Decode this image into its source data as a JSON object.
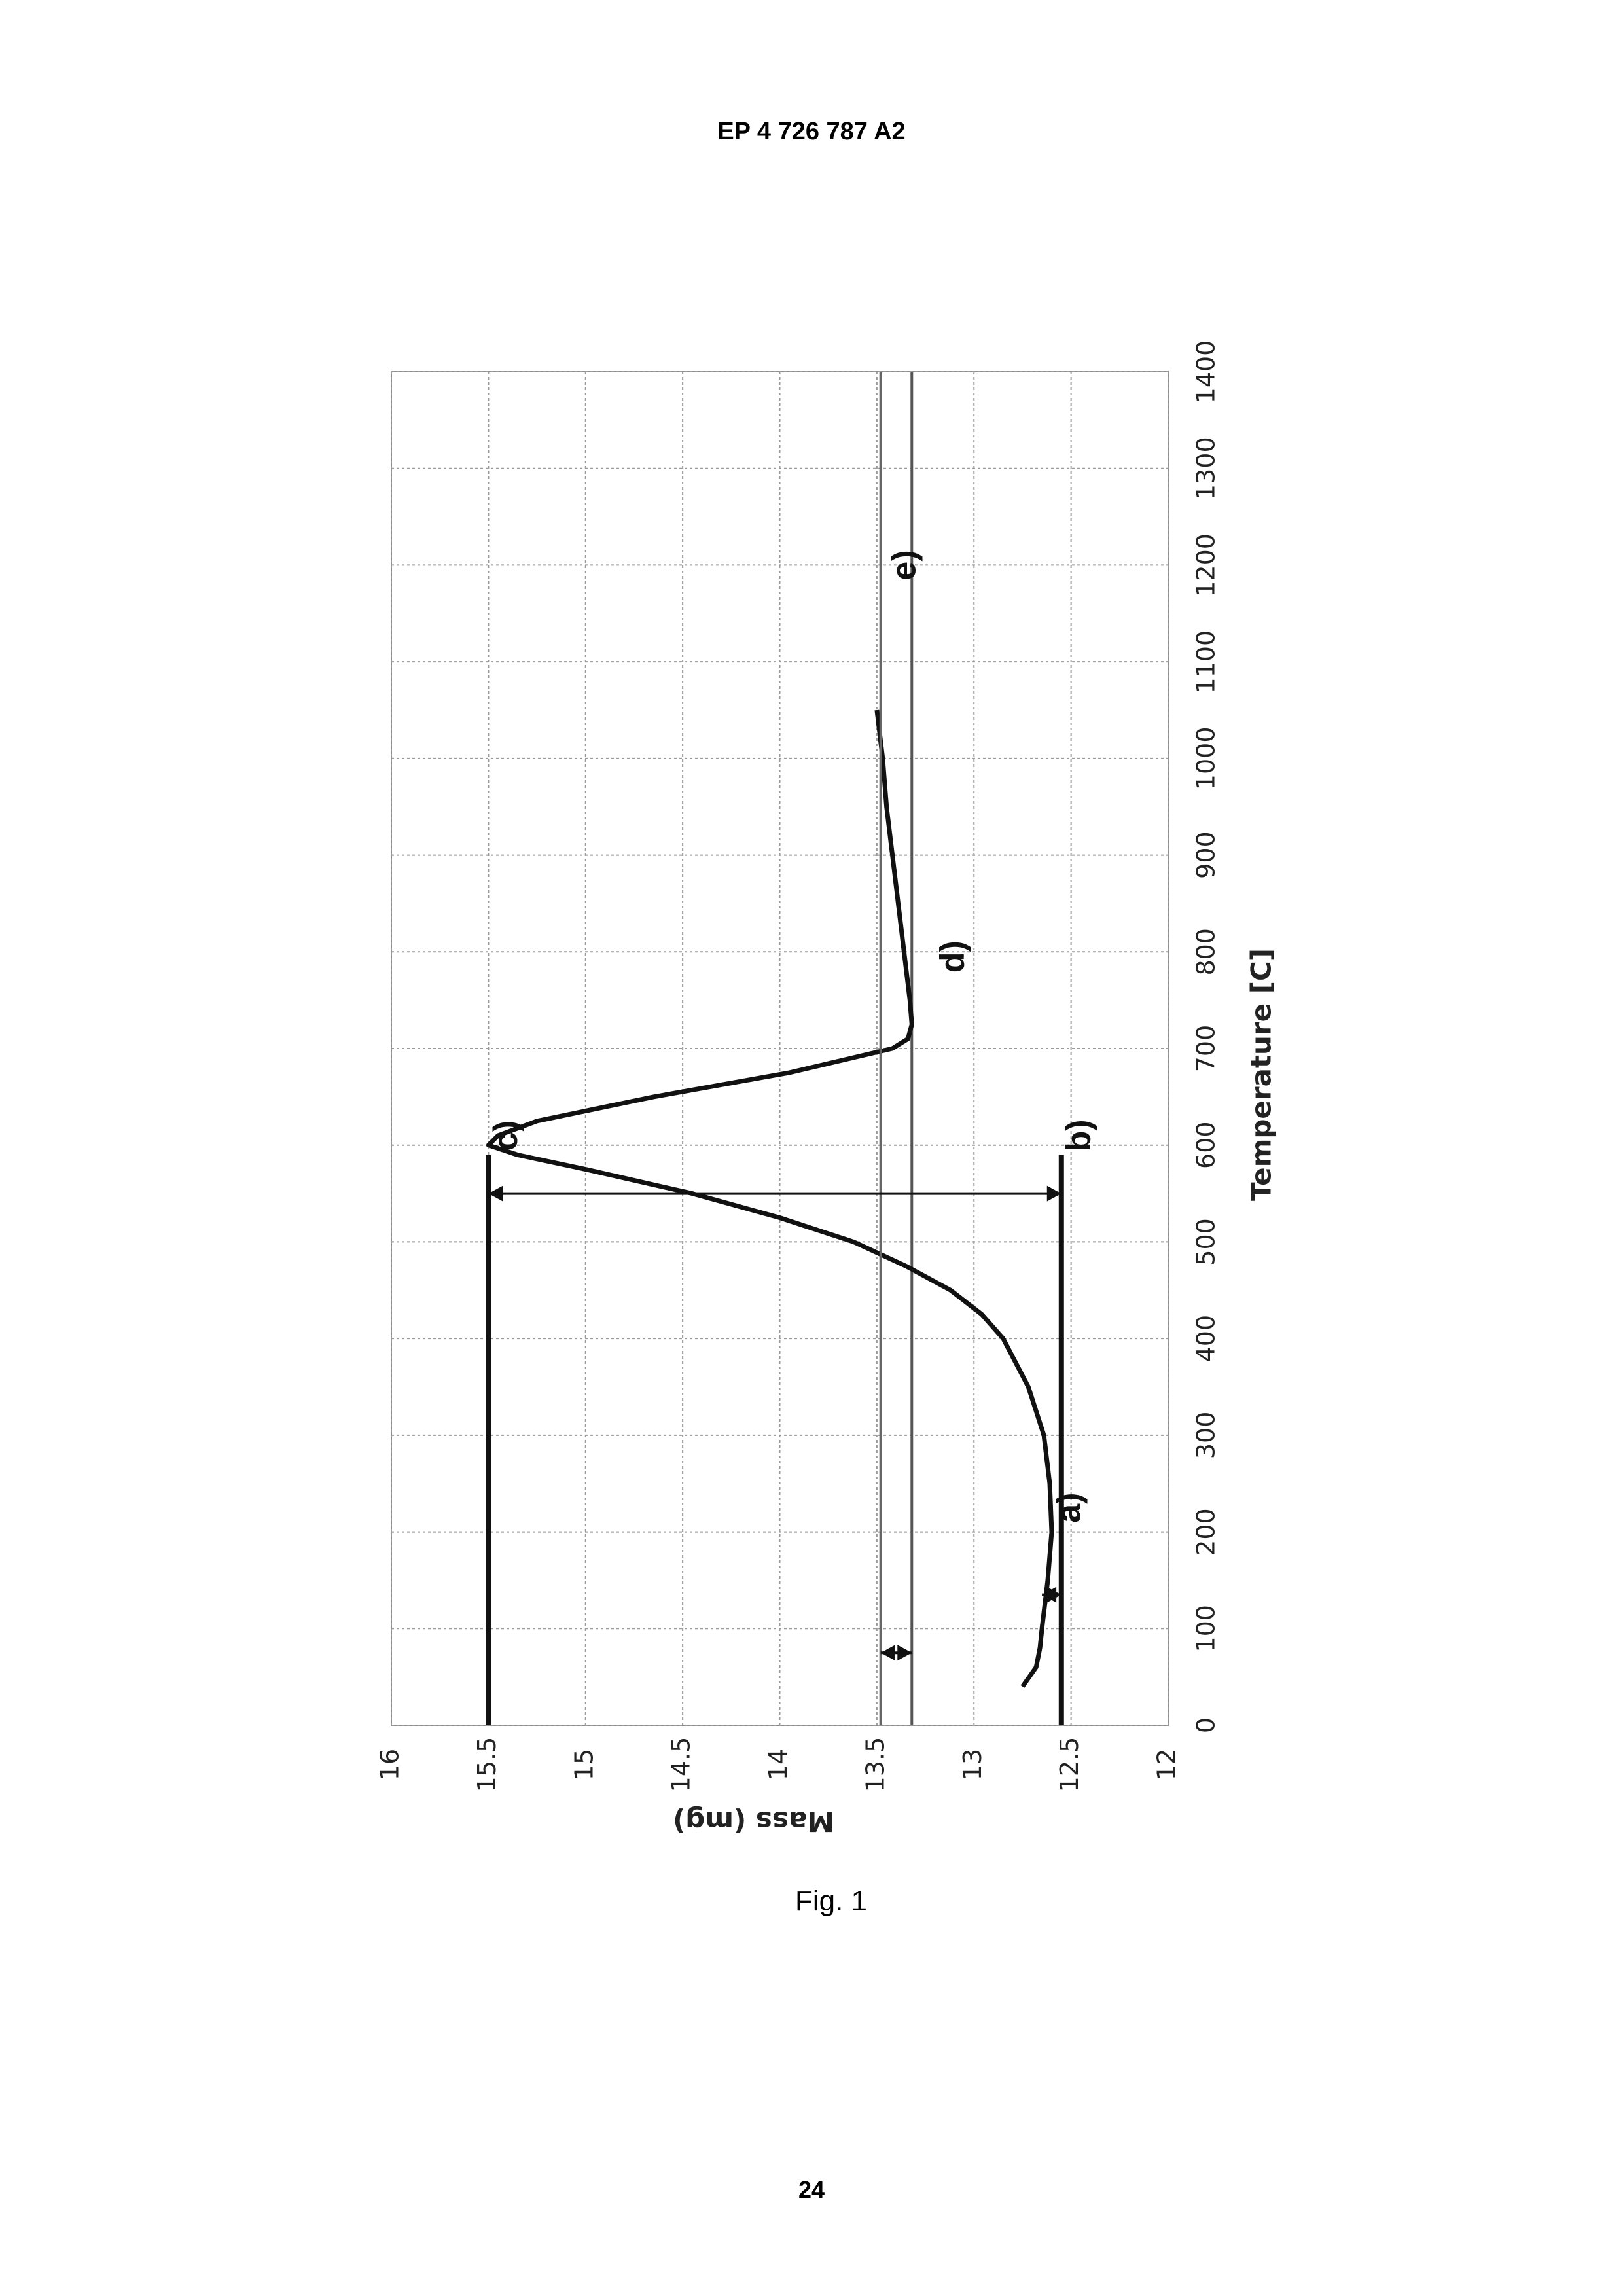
{
  "page": {
    "header": "EP 4 726 787 A2",
    "caption": "Fig. 1",
    "page_number": "24"
  },
  "chart_data": {
    "type": "line",
    "orientation": "rotated-90-counterclockwise",
    "xlabel": "Temperature [C]",
    "ylabel": "Mass (mg)",
    "xlim": [
      0,
      1400
    ],
    "ylim": [
      12,
      16
    ],
    "x_ticks": [
      "0",
      "100",
      "200",
      "300",
      "400",
      "500",
      "600",
      "700",
      "800",
      "900",
      "1000",
      "1100",
      "1200",
      "1300",
      "1400"
    ],
    "y_ticks": [
      "12",
      "12.5",
      "13",
      "13.5",
      "14",
      "14.5",
      "15",
      "15.5",
      "16"
    ],
    "grid": true,
    "series": [
      {
        "x": [
          40,
          60,
          80,
          100,
          150,
          200,
          250,
          300,
          350,
          400,
          425,
          450,
          475,
          500,
          525,
          550,
          575,
          590,
          600,
          610,
          625,
          650,
          675,
          700,
          710,
          725,
          750,
          800,
          850,
          900,
          950,
          1000,
          1050
        ],
        "y": [
          12.75,
          12.68,
          12.66,
          12.65,
          12.62,
          12.6,
          12.61,
          12.64,
          12.72,
          12.85,
          12.96,
          13.12,
          13.35,
          13.62,
          14.0,
          14.45,
          15.0,
          15.35,
          15.5,
          15.45,
          15.25,
          14.65,
          13.95,
          13.42,
          13.34,
          13.32,
          13.33,
          13.36,
          13.39,
          13.42,
          13.45,
          13.47,
          13.5
        ]
      },
      {
        "x": [
          0,
          1400
        ],
        "y": [
          13.48,
          13.48
        ]
      }
    ],
    "reference_lines": [
      {
        "y": 15.5,
        "x": [
          0,
          590
        ],
        "label": "c)"
      },
      {
        "y": 12.55,
        "x": [
          0,
          590
        ],
        "label": "b)"
      },
      {
        "y": 13.32,
        "x": [
          0,
          1400
        ]
      },
      {
        "y": 13.48,
        "x": [
          0,
          1400
        ]
      }
    ],
    "annotations": [
      {
        "text": "a)",
        "x": 225,
        "y": 12.6
      },
      {
        "text": "b)",
        "x": 610,
        "y": 12.55
      },
      {
        "text": "c)",
        "x": 610,
        "y": 15.5
      },
      {
        "text": "d)",
        "x": 795,
        "y": 13.2
      },
      {
        "text": "e)",
        "x": 1200,
        "y": 13.45
      }
    ],
    "arrows": [
      {
        "x": 550,
        "y_from": 12.55,
        "y_to": 15.5
      },
      {
        "x": 75,
        "y_from": 13.32,
        "y_to": 13.48
      },
      {
        "x": 135,
        "y_from": 12.55,
        "y_to": 12.65
      }
    ]
  }
}
